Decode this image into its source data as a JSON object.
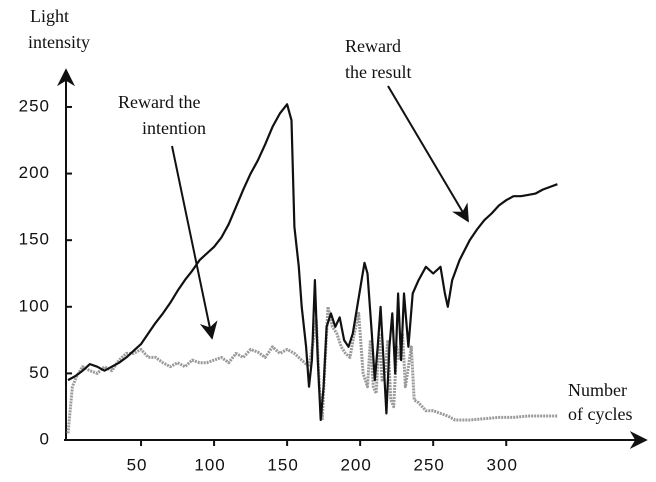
{
  "chart_data": {
    "type": "line",
    "y_label": [
      "Light",
      "intensity"
    ],
    "x_label": [
      "Number",
      "of cycles"
    ],
    "annotations": [
      {
        "lines": [
          "Reward the",
          "intention"
        ]
      },
      {
        "lines": [
          "Reward",
          "the result"
        ]
      }
    ],
    "xlim": [
      0,
      395
    ],
    "ylim": [
      0,
      280
    ],
    "xticks": [
      50,
      100,
      150,
      200,
      250,
      300
    ],
    "yticks": [
      0,
      50,
      100,
      150,
      200,
      250
    ],
    "series": [
      {
        "color": "#111111",
        "x": [
          0,
          5,
          10,
          15,
          20,
          25,
          30,
          35,
          40,
          45,
          50,
          55,
          60,
          65,
          70,
          75,
          80,
          85,
          90,
          95,
          100,
          105,
          110,
          115,
          120,
          125,
          130,
          135,
          140,
          145,
          150,
          153,
          155,
          158,
          160,
          163,
          165,
          167,
          169,
          171,
          173,
          175,
          177,
          180,
          183,
          186,
          189,
          192,
          195,
          198,
          201,
          203,
          205,
          208,
          210,
          212,
          214,
          216,
          218,
          220,
          222,
          224,
          226,
          228,
          230,
          233,
          236,
          240,
          245,
          250,
          255,
          258,
          260,
          263,
          268,
          275,
          280,
          285,
          290,
          295,
          300,
          305,
          310,
          315,
          320,
          325,
          330,
          335
        ],
        "values": [
          45,
          48,
          52,
          57,
          55,
          52,
          55,
          58,
          62,
          67,
          72,
          80,
          88,
          95,
          103,
          112,
          120,
          127,
          135,
          140,
          145,
          152,
          162,
          175,
          188,
          200,
          210,
          222,
          235,
          245,
          252,
          240,
          160,
          130,
          100,
          70,
          40,
          60,
          120,
          60,
          15,
          40,
          85,
          95,
          85,
          92,
          75,
          70,
          80,
          100,
          120,
          133,
          125,
          80,
          45,
          70,
          100,
          60,
          20,
          70,
          95,
          50,
          110,
          60,
          110,
          70,
          110,
          120,
          130,
          125,
          130,
          110,
          100,
          120,
          135,
          150,
          158,
          165,
          170,
          176,
          180,
          183,
          183,
          184,
          185,
          188,
          190,
          192
        ]
      },
      {
        "color": "#9a9a9a",
        "x": [
          0,
          3,
          6,
          10,
          15,
          20,
          25,
          30,
          35,
          40,
          45,
          50,
          55,
          60,
          65,
          70,
          75,
          80,
          85,
          90,
          95,
          100,
          105,
          110,
          115,
          120,
          125,
          130,
          135,
          140,
          145,
          150,
          155,
          160,
          165,
          168,
          170,
          172,
          174,
          176,
          178,
          181,
          184,
          187,
          190,
          193,
          196,
          199,
          202,
          205,
          207,
          209,
          211,
          213,
          215,
          217,
          219,
          221,
          223,
          225,
          227,
          229,
          231,
          233,
          235,
          237,
          240,
          245,
          250,
          255,
          260,
          265,
          275,
          285,
          295,
          305,
          315,
          325,
          335
        ],
        "values": [
          5,
          40,
          48,
          55,
          52,
          50,
          55,
          52,
          60,
          65,
          65,
          68,
          62,
          62,
          58,
          55,
          58,
          55,
          60,
          58,
          58,
          60,
          62,
          58,
          65,
          62,
          68,
          66,
          62,
          70,
          65,
          68,
          65,
          60,
          55,
          75,
          90,
          40,
          15,
          60,
          100,
          85,
          80,
          70,
          65,
          62,
          80,
          95,
          50,
          40,
          75,
          40,
          35,
          80,
          45,
          50,
          75,
          30,
          25,
          70,
          60,
          80,
          40,
          55,
          70,
          30,
          28,
          22,
          22,
          20,
          18,
          15,
          15,
          16,
          17,
          17,
          18,
          18,
          18
        ]
      }
    ]
  }
}
